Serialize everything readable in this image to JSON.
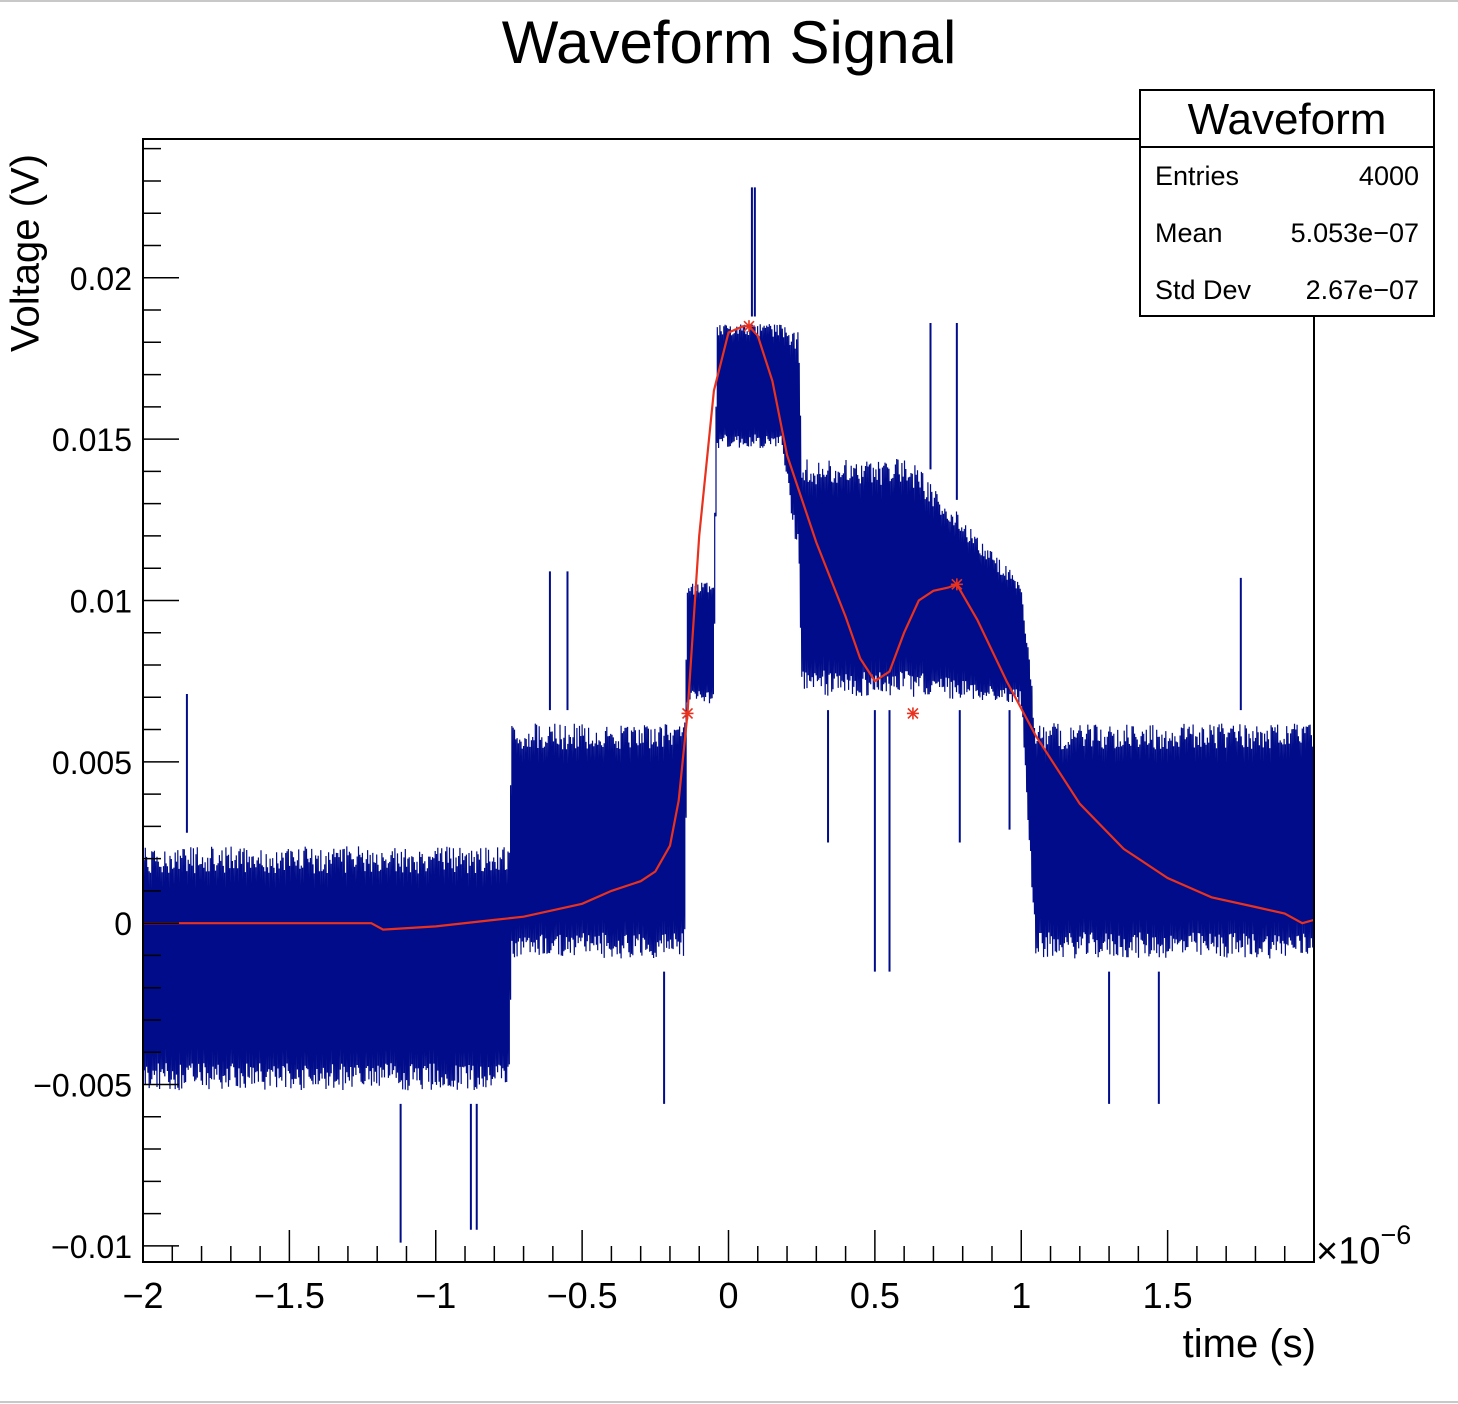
{
  "chart_data": {
    "type": "line",
    "title": "Waveform Signal",
    "xlabel": "time (s)",
    "ylabel": "Voltage (V)",
    "x_exponent_label": "×10",
    "x_exponent_power": "−6",
    "xlim": [
      -2e-06,
      2e-06
    ],
    "ylim": [
      -0.0105,
      0.0243
    ],
    "x_ticks": [
      {
        "value": -2.0,
        "label": "−2"
      },
      {
        "value": -1.5,
        "label": "−1.5"
      },
      {
        "value": -1.0,
        "label": "−1"
      },
      {
        "value": -0.5,
        "label": "−0.5"
      },
      {
        "value": 0.0,
        "label": "0"
      },
      {
        "value": 0.5,
        "label": "0.5"
      },
      {
        "value": 1.0,
        "label": "1"
      },
      {
        "value": 1.5,
        "label": "1.5"
      }
    ],
    "y_ticks": [
      {
        "value": 0.02,
        "label": "0.02"
      },
      {
        "value": 0.015,
        "label": "0.015"
      },
      {
        "value": 0.01,
        "label": "0.01"
      },
      {
        "value": 0.005,
        "label": "0.005"
      },
      {
        "value": 0.0,
        "label": "0"
      },
      {
        "value": -0.005,
        "label": "−0.005"
      },
      {
        "value": -0.01,
        "label": "−0.01"
      }
    ],
    "colors": {
      "waveform": "#000c8a",
      "smoothed": "#e8321e"
    },
    "envelope": {
      "x": [
        -2.0,
        -1.25,
        -1.15,
        -0.75,
        -0.74,
        -0.15,
        -0.14,
        -0.05,
        -0.04,
        0.18,
        0.24,
        0.25,
        0.6,
        0.62,
        1.0,
        1.05,
        1.96
      ],
      "upper": [
        0.0028,
        0.0028,
        0.0028,
        0.0028,
        0.0066,
        0.0066,
        0.0108,
        0.0108,
        0.0188,
        0.0188,
        0.0188,
        0.0148,
        0.0148,
        0.0148,
        0.0108,
        0.0066,
        0.0066
      ],
      "lower": [
        -0.0056,
        -0.0056,
        -0.0056,
        -0.0056,
        -0.0015,
        -0.0015,
        0.0066,
        0.0066,
        0.0145,
        0.0145,
        0.0108,
        0.0066,
        0.0066,
        0.0066,
        0.0066,
        -0.0015,
        -0.0015
      ]
    },
    "spikes": [
      {
        "x": 0.08,
        "y": 0.0228
      },
      {
        "x": 0.09,
        "y": 0.0228
      },
      {
        "x": -1.12,
        "y": -0.0099
      },
      {
        "x": -0.86,
        "y": -0.0095
      },
      {
        "x": -0.88,
        "y": -0.0095
      },
      {
        "x": -1.85,
        "y": 0.0071
      },
      {
        "x": -0.61,
        "y": 0.0109
      },
      {
        "x": -0.55,
        "y": 0.0109
      },
      {
        "x": 0.69,
        "y": 0.0186
      },
      {
        "x": 0.78,
        "y": 0.0186
      },
      {
        "x": 1.75,
        "y": 0.0107
      },
      {
        "x": 0.5,
        "y": -0.0015
      },
      {
        "x": 0.55,
        "y": -0.0015
      },
      {
        "x": -0.22,
        "y": -0.0056
      },
      {
        "x": 1.3,
        "y": -0.0056
      },
      {
        "x": 1.47,
        "y": -0.0056
      },
      {
        "x": 0.34,
        "y": 0.0025
      },
      {
        "x": 0.79,
        "y": 0.0025
      },
      {
        "x": 0.96,
        "y": 0.0029
      }
    ],
    "series": [
      {
        "name": "",
        "x": [
          -2.0,
          -1.5,
          -1.3,
          -1.22,
          -1.18,
          -1.0,
          -0.8,
          -0.7,
          -0.5,
          -0.4,
          -0.3,
          -0.25,
          -0.2,
          -0.17,
          -0.14,
          -0.1,
          -0.05,
          0.0,
          0.05,
          0.07,
          0.1,
          0.15,
          0.2,
          0.3,
          0.4,
          0.45,
          0.5,
          0.55,
          0.6,
          0.65,
          0.7,
          0.75,
          0.78,
          0.85,
          0.95,
          1.05,
          1.2,
          1.35,
          1.5,
          1.65,
          1.8,
          1.9,
          1.96,
          2.0
        ],
        "y": [
          0.0,
          0.0,
          0.0,
          0.0,
          -0.0002,
          -0.0001,
          0.0001,
          0.0002,
          0.0006,
          0.001,
          0.0013,
          0.0016,
          0.0024,
          0.0038,
          0.0065,
          0.012,
          0.0165,
          0.0183,
          0.0185,
          0.0185,
          0.0182,
          0.0168,
          0.0145,
          0.0118,
          0.0095,
          0.0082,
          0.0075,
          0.0078,
          0.009,
          0.01,
          0.0103,
          0.0104,
          0.0105,
          0.0094,
          0.0075,
          0.0058,
          0.0037,
          0.0023,
          0.0014,
          0.0008,
          0.0005,
          0.0003,
          0.0,
          0.0001
        ]
      }
    ],
    "markers": [
      {
        "x": -0.14,
        "y": 0.0065
      },
      {
        "x": 0.07,
        "y": 0.0185
      },
      {
        "x": 0.63,
        "y": 0.0065
      },
      {
        "x": 0.78,
        "y": 0.0105
      }
    ]
  },
  "stats": {
    "title": "Waveform",
    "rows": [
      {
        "label": "Entries",
        "value": "4000"
      },
      {
        "label": "Mean",
        "value": "5.053e−07"
      },
      {
        "label": "Std Dev",
        "value": "2.67e−07"
      }
    ]
  }
}
